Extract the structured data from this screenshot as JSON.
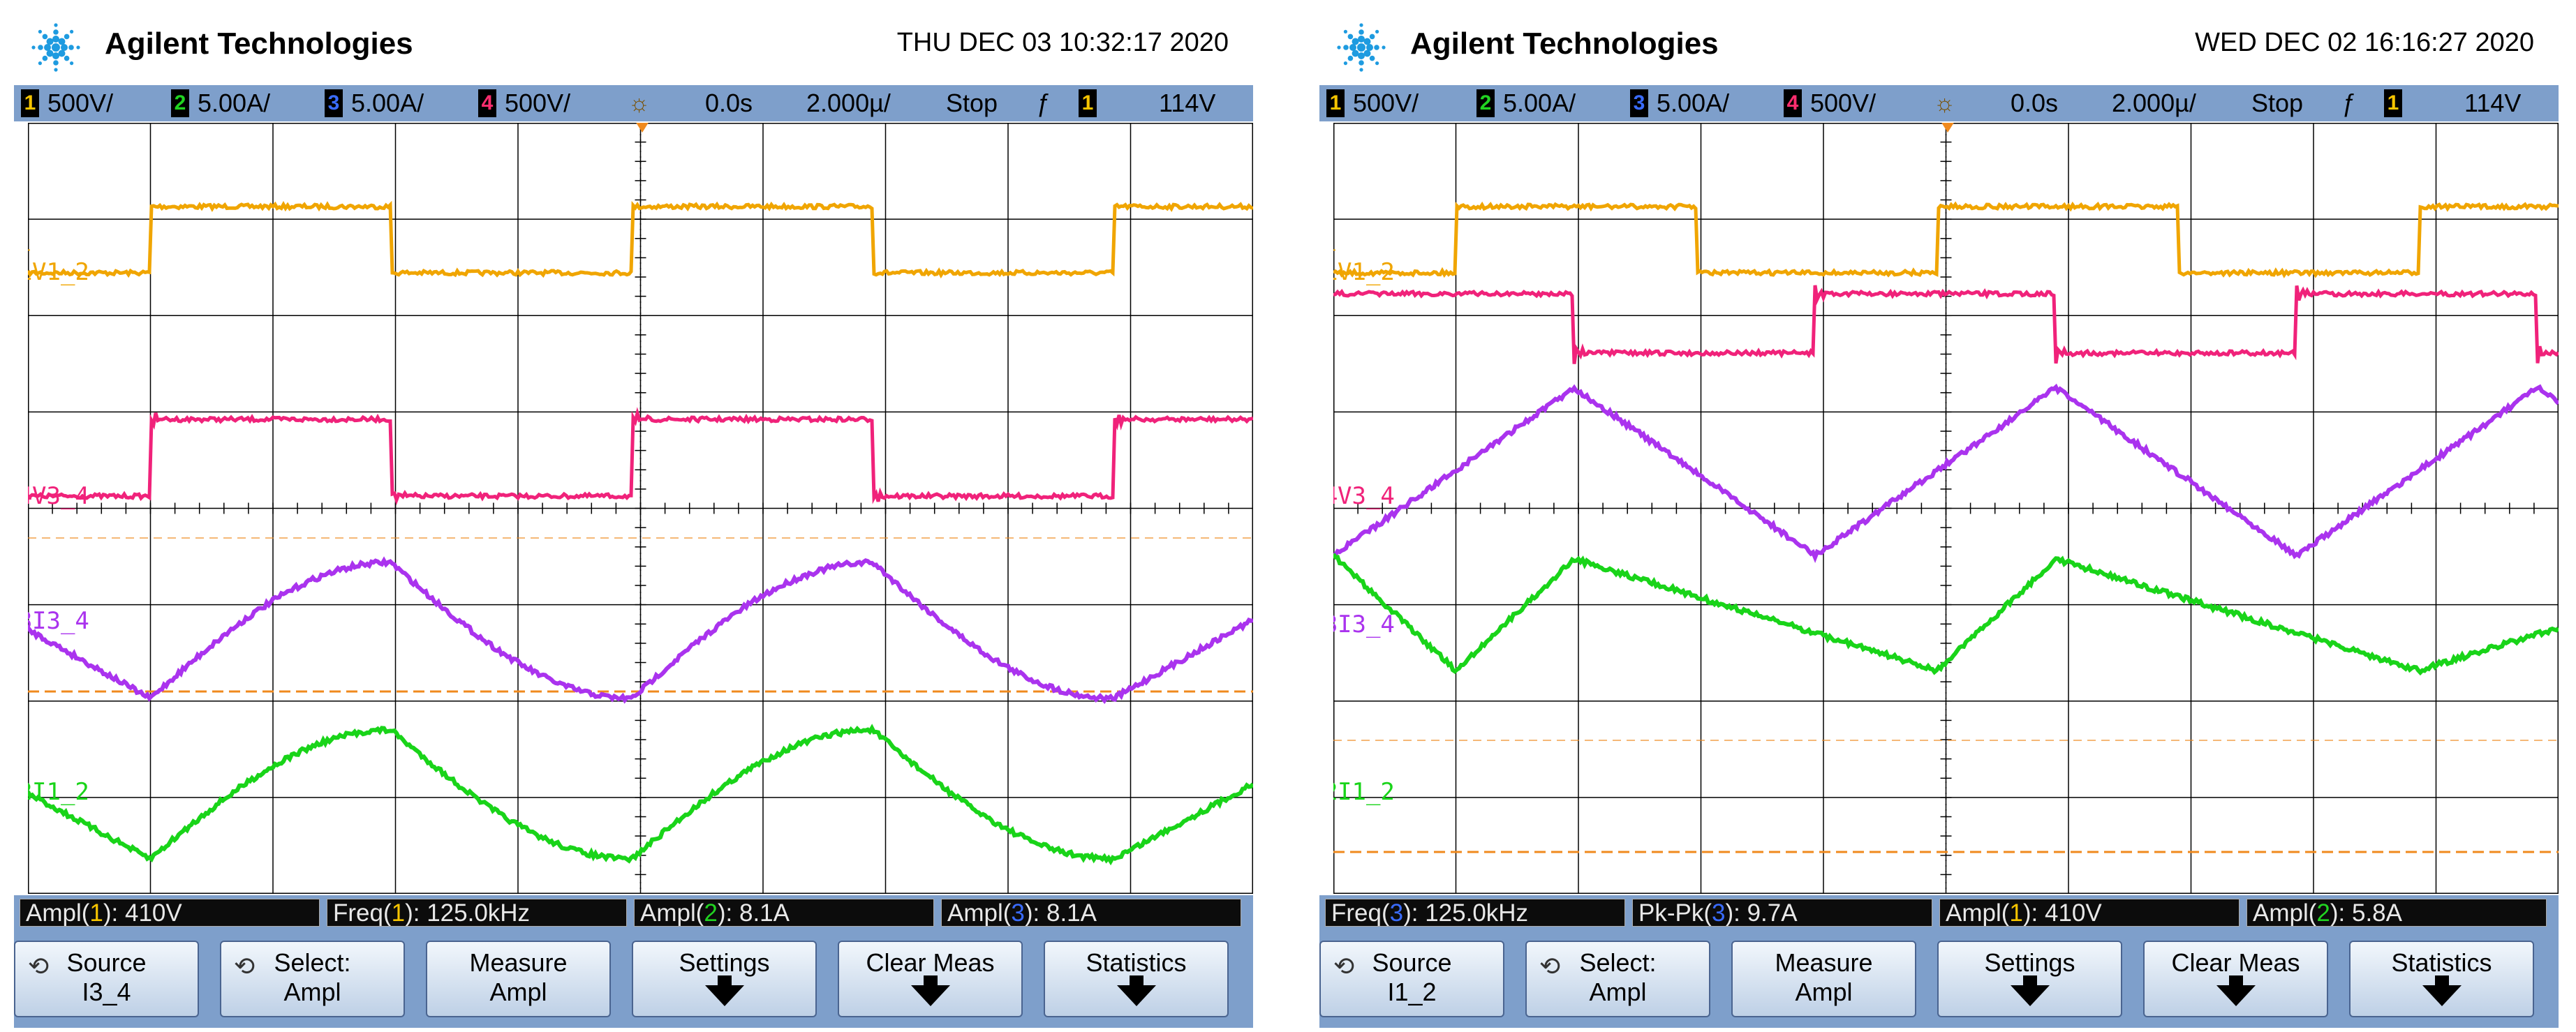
{
  "brand": "Agilent Technologies",
  "colors": {
    "ch1": "#f0a500",
    "ch2": "#19d419",
    "ch3": "#aa33ee",
    "ch4": "#f0227a",
    "grid": "#000000",
    "cursor": "#f08a1e",
    "bar": "#7e9fcb"
  },
  "screens": [
    {
      "date": "THU DEC 03 10:32:17 2020",
      "status": {
        "ch1_num": "1",
        "ch1_scale": "500V/",
        "ch2_num": "2",
        "ch2_scale": "5.00A/",
        "ch3_num": "3",
        "ch3_scale": "5.00A/",
        "ch4_num": "4",
        "ch4_scale": "500V/",
        "delay": "0.0s",
        "timebase": "2.000µ/",
        "run_state": "Stop",
        "trig_edge": "ƒ",
        "trig_src": "1",
        "trig_level": "114V"
      },
      "labels": {
        "v12": "V1_2",
        "v34": "V3_4",
        "i34": "I3_4",
        "i12": "I1_2",
        "m1": "1",
        "m4": "4",
        "m3": "3",
        "m2": "2",
        "trig": "T"
      },
      "measurements": [
        {
          "pre": "Ampl(",
          "ch": "1",
          "post": "): 410V",
          "cls": "c1"
        },
        {
          "pre": "Freq(",
          "ch": "1",
          "post": "): 125.0kHz",
          "cls": "c1"
        },
        {
          "pre": "Ampl(",
          "ch": "2",
          "post": "): 8.1A",
          "cls": "c2"
        },
        {
          "pre": "Ampl(",
          "ch": "3",
          "post": "): 8.1A",
          "cls": "c3"
        }
      ],
      "softkeys": [
        {
          "l1": "Source",
          "l2": "I3_4",
          "icon": "⟲"
        },
        {
          "l1": "Select:",
          "l2": "Ampl",
          "icon": "⟲"
        },
        {
          "l1": "Measure",
          "l2": "Ampl"
        },
        {
          "l1": "Settings",
          "l2": ""
        },
        {
          "l1": "Clear Meas",
          "l2": ""
        },
        {
          "l1": "Statistics",
          "l2": ""
        }
      ]
    },
    {
      "date": "WED DEC 02 16:16:27 2020",
      "status": {
        "ch1_num": "1",
        "ch1_scale": "500V/",
        "ch2_num": "2",
        "ch2_scale": "5.00A/",
        "ch3_num": "3",
        "ch3_scale": "5.00A/",
        "ch4_num": "4",
        "ch4_scale": "500V/",
        "delay": "0.0s",
        "timebase": "2.000µ/",
        "run_state": "Stop",
        "trig_edge": "ƒ",
        "trig_src": "1",
        "trig_level": "114V"
      },
      "labels": {
        "v12": "V1_2",
        "v34": "V3_4",
        "i34": "I3_4",
        "i12": "I1_2",
        "m1": "1",
        "m4": "4",
        "m3": "3",
        "m2": "2",
        "trig": "T"
      },
      "measurements": [
        {
          "pre": "Freq(",
          "ch": "3",
          "post": "): 125.0kHz",
          "cls": "c3"
        },
        {
          "pre": "Pk-Pk(",
          "ch": "3",
          "post": "): 9.7A",
          "cls": "c3"
        },
        {
          "pre": "Ampl(",
          "ch": "1",
          "post": "): 410V",
          "cls": "c1"
        },
        {
          "pre": "Ampl(",
          "ch": "2",
          "post": "): 5.8A",
          "cls": "c2"
        }
      ],
      "softkeys": [
        {
          "l1": "Source",
          "l2": "I1_2",
          "icon": "⟲"
        },
        {
          "l1": "Select:",
          "l2": "Ampl",
          "icon": "⟲"
        },
        {
          "l1": "Measure",
          "l2": "Ampl"
        },
        {
          "l1": "Settings",
          "l2": ""
        },
        {
          "l1": "Clear Meas",
          "l2": ""
        },
        {
          "l1": "Statistics",
          "l2": ""
        }
      ]
    }
  ]
}
